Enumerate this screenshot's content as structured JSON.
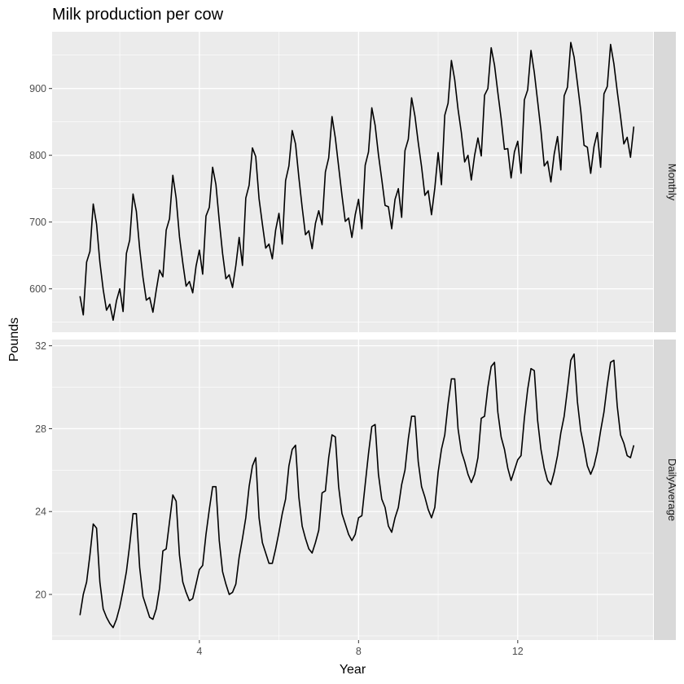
{
  "chart_data": {
    "type": "line",
    "title": "Milk production per cow",
    "xlabel": "Year",
    "ylabel": "Pounds",
    "grid": true,
    "xlim": [
      0.3,
      15.4
    ],
    "x_ticks": [
      4,
      8,
      12
    ],
    "x_ticks_minor": [
      2,
      6,
      10,
      14
    ],
    "x_start": 1,
    "x_step": 0.08333,
    "panels": [
      {
        "name": "Monthly",
        "ylim": [
          535,
          985
        ],
        "y_ticks": [
          600,
          700,
          800,
          900
        ],
        "y_ticks_minor": [
          550,
          650,
          750,
          850,
          950
        ],
        "values": [
          589,
          561,
          640,
          656,
          727,
          697,
          640,
          599,
          568,
          577,
          553,
          582,
          600,
          566,
          653,
          673,
          742,
          716,
          660,
          617,
          583,
          587,
          565,
          598,
          628,
          618,
          688,
          705,
          770,
          736,
          678,
          639,
          604,
          611,
          594,
          634,
          658,
          622,
          709,
          722,
          782,
          756,
          702,
          653,
          615,
          621,
          602,
          635,
          677,
          635,
          736,
          755,
          811,
          798,
          735,
          697,
          661,
          667,
          645,
          688,
          713,
          667,
          762,
          784,
          837,
          817,
          767,
          722,
          681,
          687,
          660,
          698,
          717,
          696,
          775,
          796,
          858,
          826,
          783,
          740,
          701,
          706,
          677,
          711,
          734,
          690,
          785,
          805,
          871,
          845,
          801,
          764,
          725,
          723,
          690,
          734,
          750,
          707,
          807,
          824,
          886,
          859,
          819,
          783,
          740,
          747,
          711,
          751,
          804,
          756,
          860,
          878,
          942,
          913,
          869,
          834,
          790,
          800,
          763,
          800,
          826,
          799,
          890,
          900,
          961,
          935,
          894,
          855,
          809,
          810,
          766,
          805,
          821,
          773,
          883,
          898,
          957,
          924,
          881,
          837,
          784,
          791,
          760,
          802,
          828,
          778,
          889,
          902,
          969,
          947,
          908,
          867,
          815,
          812,
          773,
          813,
          834,
          782,
          892,
          903,
          966,
          937,
          896,
          858,
          817,
          827,
          797,
          843
        ]
      },
      {
        "name": "DailyAverage",
        "ylim": [
          17.8,
          32.3
        ],
        "y_ticks": [
          20,
          24,
          28,
          32
        ],
        "y_ticks_minor": [
          18,
          22,
          26,
          30
        ],
        "values": [
          19.0,
          20.0,
          20.6,
          21.9,
          23.4,
          23.2,
          20.6,
          19.3,
          18.9,
          18.6,
          18.4,
          18.8,
          19.4,
          20.2,
          21.1,
          22.4,
          23.9,
          23.9,
          21.3,
          19.9,
          19.4,
          18.9,
          18.8,
          19.3,
          20.3,
          22.1,
          22.2,
          23.5,
          24.8,
          24.5,
          21.9,
          20.6,
          20.1,
          19.7,
          19.8,
          20.5,
          21.2,
          21.4,
          22.9,
          24.1,
          25.2,
          25.2,
          22.6,
          21.1,
          20.5,
          20.0,
          20.1,
          20.5,
          21.8,
          22.7,
          23.7,
          25.2,
          26.2,
          26.6,
          23.7,
          22.5,
          22.0,
          21.5,
          21.5,
          22.2,
          23.0,
          23.9,
          24.6,
          26.2,
          27.0,
          27.2,
          24.7,
          23.3,
          22.7,
          22.2,
          22.0,
          22.5,
          23.1,
          24.9,
          25.0,
          26.6,
          27.7,
          27.6,
          25.2,
          23.9,
          23.4,
          22.9,
          22.6,
          22.9,
          23.7,
          23.8,
          25.3,
          26.8,
          28.1,
          28.2,
          25.8,
          24.6,
          24.2,
          23.3,
          23.0,
          23.7,
          24.2,
          25.3,
          26.0,
          27.5,
          28.6,
          28.6,
          26.4,
          25.2,
          24.7,
          24.1,
          23.7,
          24.2,
          25.9,
          27.0,
          27.7,
          29.2,
          30.4,
          30.4,
          28.0,
          26.9,
          26.4,
          25.8,
          25.4,
          25.8,
          26.6,
          28.5,
          28.6,
          30.0,
          31.0,
          31.2,
          28.8,
          27.6,
          27.0,
          26.1,
          25.5,
          26.0,
          26.5,
          26.7,
          28.5,
          29.9,
          30.9,
          30.8,
          28.4,
          27.0,
          26.1,
          25.5,
          25.3,
          25.9,
          26.7,
          27.8,
          28.6,
          29.9,
          31.3,
          31.6,
          29.3,
          27.9,
          27.1,
          26.2,
          25.8,
          26.2,
          26.9,
          27.9,
          28.8,
          30.1,
          31.2,
          31.3,
          29.1,
          27.7,
          27.3,
          26.7,
          26.6,
          27.2
        ]
      }
    ]
  }
}
